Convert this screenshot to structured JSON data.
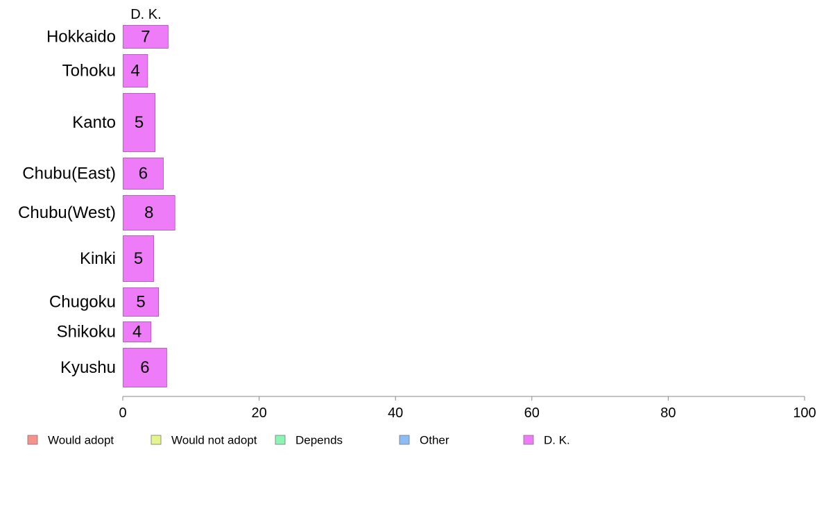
{
  "chart_data": {
    "type": "bar",
    "orientation": "horizontal",
    "stacked": true,
    "title": "",
    "xlabel": "",
    "ylabel": "",
    "xlim": [
      0,
      100
    ],
    "x_ticks": [
      0,
      20,
      40,
      60,
      80,
      100
    ],
    "grid": false,
    "categories": [
      "Hokkaido",
      "Tohoku",
      "Kanto",
      "Chubu(East)",
      "Chubu(West)",
      "Kinki",
      "Chugoku",
      "Shikoku",
      "Kyushu"
    ],
    "series": [
      {
        "name": "Would adopt",
        "color": "#f8918c",
        "values": [
          0,
          0,
          0,
          0,
          0,
          0,
          0,
          0,
          0
        ]
      },
      {
        "name": "Would not adopt",
        "color": "#e5f58c",
        "values": [
          0,
          0,
          0,
          0,
          0,
          0,
          0,
          0,
          0
        ]
      },
      {
        "name": "Depends",
        "color": "#8cf5b4",
        "values": [
          0,
          0,
          0,
          0,
          0,
          0,
          0,
          0,
          0
        ]
      },
      {
        "name": "Other",
        "color": "#8cbcf5",
        "values": [
          0,
          0,
          0,
          0,
          0,
          0,
          0,
          0,
          0
        ]
      },
      {
        "name": "D. K.",
        "color": "#ee7cf8",
        "values": [
          6.7,
          3.7,
          4.8,
          6.0,
          7.7,
          4.6,
          5.3,
          4.2,
          6.5
        ]
      }
    ],
    "value_labels": [
      "7",
      "4",
      "5",
      "6",
      "8",
      "5",
      "5",
      "4",
      "6"
    ],
    "series_header": "D. K.",
    "legend_position": "bottom"
  }
}
